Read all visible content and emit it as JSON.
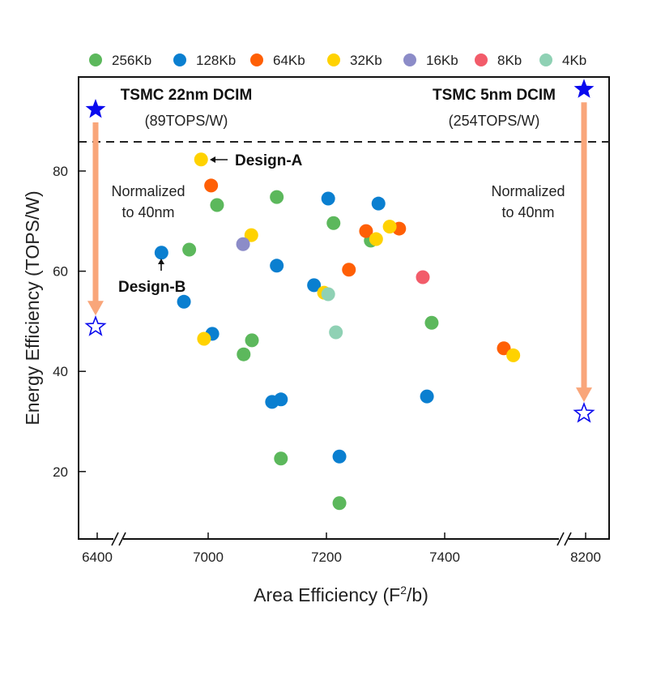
{
  "chart_data": {
    "type": "scatter",
    "title": "",
    "xlabel": "Area Efficiency (F²/b)",
    "xlabel_main": "Area Efficiency (F",
    "xlabel_sup": "2",
    "xlabel_tail": "/b)",
    "ylabel": "Energy Efficiency (TOPS/W)",
    "x_ticks": [
      6400,
      7000,
      7200,
      7400,
      8200
    ],
    "y_ticks": [
      20,
      40,
      60,
      80
    ],
    "ylim": [
      6.5,
      99
    ],
    "x_axis_breaks": [
      "6400-6850",
      "7600-8150"
    ],
    "grid": false,
    "legend_placement": "top",
    "reference_line_y": 86,
    "series": [
      {
        "name": "256Kb",
        "color": "#5cb85c",
        "points": [
          [
            7015,
            73.2
          ],
          [
            7116,
            74.8
          ],
          [
            6968,
            64.3
          ],
          [
            7212,
            69.6
          ],
          [
            7275,
            66.1
          ],
          [
            7060,
            43.4
          ],
          [
            7074,
            46.2
          ],
          [
            7123,
            22.6
          ],
          [
            7222,
            13.7
          ],
          [
            7378,
            49.7
          ]
        ]
      },
      {
        "name": "128Kb",
        "color": "#0a7fd0",
        "points": [
          [
            6921,
            63.7
          ],
          [
            6959,
            53.9
          ],
          [
            7007,
            47.5
          ],
          [
            7116,
            61.1
          ],
          [
            7203,
            74.5
          ],
          [
            7288,
            73.5
          ],
          [
            7179,
            57.2
          ],
          [
            7108,
            33.9
          ],
          [
            7123,
            34.4
          ],
          [
            7222,
            23.0
          ],
          [
            7370,
            35.0
          ]
        ]
      },
      {
        "name": "64Kb",
        "color": "#ff5f05",
        "points": [
          [
            7005,
            77.1
          ],
          [
            7267,
            68.0
          ],
          [
            7323,
            68.5
          ],
          [
            7238,
            60.3
          ],
          [
            7500,
            44.6
          ]
        ]
      },
      {
        "name": "32Kb",
        "color": "#ffd200",
        "points": [
          [
            6988,
            82.3
          ],
          [
            7073,
            67.2
          ],
          [
            6993,
            46.5
          ],
          [
            7307,
            68.9
          ],
          [
            7284,
            66.4
          ],
          [
            7196,
            55.7
          ],
          [
            7516,
            43.2
          ]
        ]
      },
      {
        "name": "16Kb",
        "color": "#8c8cc8",
        "points": [
          [
            7059,
            65.4
          ]
        ]
      },
      {
        "name": "8Kb",
        "color": "#f25c6a",
        "points": [
          [
            7363,
            58.8
          ]
        ]
      },
      {
        "name": "4Kb",
        "color": "#8fd1b4",
        "points": [
          [
            7203,
            55.4
          ],
          [
            7216,
            47.8
          ]
        ]
      }
    ],
    "references": [
      {
        "label": "TSMC 22nm DCIM",
        "value_label": "(89TOPS/W)",
        "x": 6400,
        "y": 92.3,
        "normalized_y": 48.9
      },
      {
        "label": "TSMC 5nm DCIM",
        "value_label": "(254TOPS/W)",
        "x": 8200,
        "y": 96.3,
        "normalized_y": 31.6
      }
    ],
    "annotations": {
      "normalized_line1": "Normalized",
      "normalized_line2": "to 40nm",
      "design_a": "Design-A",
      "design_b": "Design-B"
    },
    "colors": {
      "star": "#0a0aee",
      "arrow": "#f9a67a",
      "axis": "#111111"
    }
  }
}
